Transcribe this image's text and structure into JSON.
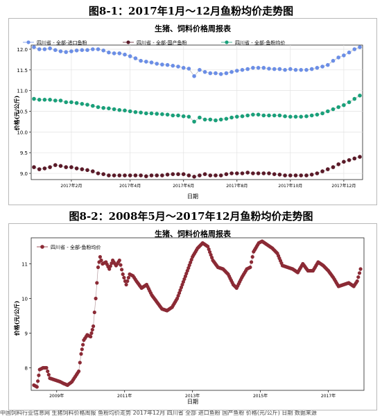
{
  "captions": {
    "fig1": "图8-1：2017年1月～12月鱼粉均价走势图",
    "fig2": "图8-2：2008年5月～2017年12月鱼粉均价走势图"
  },
  "chart_data": [
    {
      "type": "scatter",
      "title": "生猪、饲料价格周报表",
      "xlabel": "日期",
      "ylabel": "价格(元/公斤)",
      "ylim": [
        8.85,
        12.1
      ],
      "yticks": [
        9.0,
        9.5,
        10.0,
        10.5,
        11.0,
        11.5,
        12.0
      ],
      "xticks": [
        "2017年2月",
        "2017年4月",
        "2017年6月",
        "2017年8月",
        "2017年10月",
        "2017年12月"
      ],
      "grid": true,
      "legend": "top-left",
      "series": [
        {
          "name": "四川省 - 全部-进口鱼粉",
          "color": "#6b8ee6",
          "values": [
            12.05,
            12.0,
            12.0,
            12.02,
            11.98,
            11.95,
            11.93,
            11.95,
            11.97,
            11.98,
            11.98,
            12.0,
            12.0,
            11.97,
            11.92,
            11.9,
            11.9,
            11.87,
            11.83,
            11.78,
            11.72,
            11.7,
            11.68,
            11.65,
            11.63,
            11.62,
            11.6,
            11.58,
            11.55,
            11.53,
            11.35,
            11.5,
            11.45,
            11.42,
            11.42,
            11.4,
            11.42,
            11.45,
            11.48,
            11.5,
            11.52,
            11.55,
            11.55,
            11.55,
            11.53,
            11.52,
            11.52,
            11.5,
            11.52,
            11.5,
            11.5,
            11.5,
            11.52,
            11.55,
            11.58,
            11.62,
            11.72,
            11.8,
            11.85,
            11.92,
            12.0,
            12.05
          ]
        },
        {
          "name": "四川省 - 全部-国产鱼粉",
          "color": "#5a1a28",
          "values": [
            9.15,
            9.1,
            9.12,
            9.15,
            9.2,
            9.18,
            9.15,
            9.15,
            9.12,
            9.1,
            9.08,
            9.05,
            9.0,
            8.98,
            8.95,
            8.95,
            8.95,
            8.95,
            8.95,
            8.95,
            8.95,
            8.93,
            8.95,
            8.95,
            8.95,
            8.97,
            8.98,
            8.98,
            8.98,
            8.95,
            8.92,
            8.95,
            8.98,
            8.95,
            8.95,
            8.95,
            8.98,
            9.0,
            9.0,
            9.0,
            9.02,
            9.0,
            9.0,
            9.0,
            9.0,
            8.98,
            8.97,
            8.95,
            8.95,
            8.95,
            8.95,
            8.95,
            8.97,
            9.0,
            9.05,
            9.1,
            9.15,
            9.22,
            9.28,
            9.32,
            9.36,
            9.4
          ]
        },
        {
          "name": "四川省 - 全部-鱼粉均价",
          "color": "#1aa07a",
          "values": [
            10.8,
            10.78,
            10.78,
            10.78,
            10.76,
            10.76,
            10.72,
            10.72,
            10.7,
            10.68,
            10.66,
            10.63,
            10.6,
            10.58,
            10.57,
            10.55,
            10.53,
            10.52,
            10.5,
            10.48,
            10.47,
            10.45,
            10.45,
            10.44,
            10.43,
            10.42,
            10.4,
            10.4,
            10.38,
            10.37,
            10.25,
            10.35,
            10.3,
            10.3,
            10.28,
            10.3,
            10.32,
            10.35,
            10.37,
            10.38,
            10.4,
            10.42,
            10.42,
            10.4,
            10.4,
            10.4,
            10.4,
            10.38,
            10.37,
            10.37,
            10.37,
            10.38,
            10.4,
            10.42,
            10.45,
            10.5,
            10.55,
            10.6,
            10.65,
            10.72,
            10.8,
            10.88
          ]
        }
      ]
    },
    {
      "type": "scatter",
      "title": "生猪、饲料价格周报表",
      "xlabel": "日期",
      "ylabel": "价格(元/公斤)",
      "ylim": [
        7.35,
        11.75
      ],
      "yticks": [
        8,
        9,
        10,
        11
      ],
      "xticks": [
        "2009年",
        "2011年",
        "2013年",
        "2015年",
        "2017年"
      ],
      "x_domain": [
        2008.25,
        2018.05
      ],
      "grid": false,
      "legend": "top-left",
      "series": [
        {
          "name": "四川省 - 全部-鱼粉均价",
          "color": "#8b2a35",
          "anchors": [
            [
              2008.33,
              7.5
            ],
            [
              2008.42,
              7.45
            ],
            [
              2008.5,
              7.95
            ],
            [
              2008.6,
              8.0
            ],
            [
              2008.7,
              8.0
            ],
            [
              2008.8,
              7.7
            ],
            [
              2008.95,
              7.65
            ],
            [
              2009.1,
              7.6
            ],
            [
              2009.2,
              7.55
            ],
            [
              2009.32,
              7.5
            ],
            [
              2009.45,
              7.6
            ],
            [
              2009.55,
              7.75
            ],
            [
              2009.65,
              7.9
            ],
            [
              2009.72,
              8.4
            ],
            [
              2009.8,
              8.8
            ],
            [
              2009.9,
              8.95
            ],
            [
              2010.0,
              8.9
            ],
            [
              2010.08,
              9.2
            ],
            [
              2010.15,
              10.0
            ],
            [
              2010.22,
              10.9
            ],
            [
              2010.28,
              11.2
            ],
            [
              2010.35,
              11.0
            ],
            [
              2010.45,
              11.05
            ],
            [
              2010.55,
              10.85
            ],
            [
              2010.65,
              11.1
            ],
            [
              2010.75,
              10.95
            ],
            [
              2010.85,
              11.1
            ],
            [
              2010.95,
              10.7
            ],
            [
              2011.05,
              10.4
            ],
            [
              2011.15,
              10.7
            ],
            [
              2011.25,
              10.65
            ],
            [
              2011.35,
              10.5
            ],
            [
              2011.5,
              10.3
            ],
            [
              2011.65,
              10.4
            ],
            [
              2011.8,
              10.1
            ],
            [
              2011.95,
              9.9
            ],
            [
              2012.1,
              9.7
            ],
            [
              2012.25,
              9.65
            ],
            [
              2012.4,
              9.75
            ],
            [
              2012.55,
              10.0
            ],
            [
              2012.7,
              10.4
            ],
            [
              2012.85,
              10.8
            ],
            [
              2013.0,
              11.2
            ],
            [
              2013.15,
              11.45
            ],
            [
              2013.3,
              11.6
            ],
            [
              2013.45,
              11.5
            ],
            [
              2013.6,
              11.1
            ],
            [
              2013.75,
              10.9
            ],
            [
              2013.9,
              10.85
            ],
            [
              2014.05,
              10.7
            ],
            [
              2014.2,
              10.4
            ],
            [
              2014.3,
              10.3
            ],
            [
              2014.45,
              10.6
            ],
            [
              2014.6,
              10.85
            ],
            [
              2014.7,
              10.9
            ],
            [
              2014.8,
              11.35
            ],
            [
              2014.95,
              11.6
            ],
            [
              2015.05,
              11.65
            ],
            [
              2015.2,
              11.55
            ],
            [
              2015.35,
              11.45
            ],
            [
              2015.5,
              11.3
            ],
            [
              2015.65,
              10.95
            ],
            [
              2015.8,
              10.9
            ],
            [
              2015.95,
              10.85
            ],
            [
              2016.1,
              10.75
            ],
            [
              2016.25,
              11.0
            ],
            [
              2016.4,
              10.8
            ],
            [
              2016.55,
              10.8
            ],
            [
              2016.7,
              11.05
            ],
            [
              2016.85,
              10.95
            ],
            [
              2017.0,
              10.8
            ],
            [
              2017.15,
              10.6
            ],
            [
              2017.3,
              10.35
            ],
            [
              2017.45,
              10.4
            ],
            [
              2017.6,
              10.45
            ],
            [
              2017.75,
              10.35
            ],
            [
              2017.85,
              10.5
            ],
            [
              2017.95,
              10.85
            ]
          ]
        }
      ]
    }
  ],
  "bottom_strip": "中国饲料行业信息网 生猪饲料价格周报 鱼粉均价走势 2017年12月 四川省 全部 进口鱼粉 国产鱼粉 价格(元/公斤) 日期 数据来源"
}
